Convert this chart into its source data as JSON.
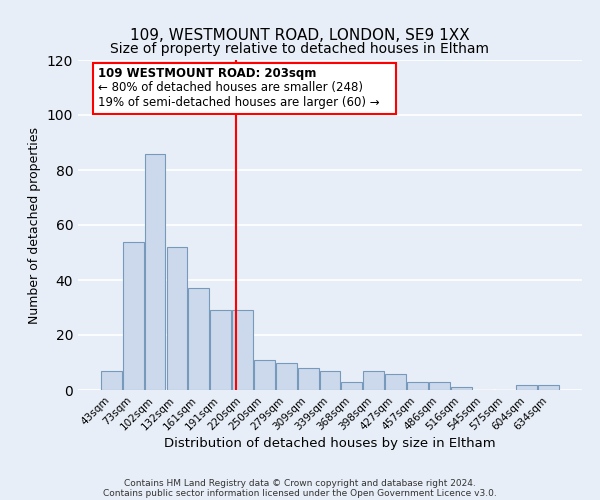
{
  "title": "109, WESTMOUNT ROAD, LONDON, SE9 1XX",
  "subtitle": "Size of property relative to detached houses in Eltham",
  "xlabel": "Distribution of detached houses by size in Eltham",
  "ylabel": "Number of detached properties",
  "bar_labels": [
    "43sqm",
    "73sqm",
    "102sqm",
    "132sqm",
    "161sqm",
    "191sqm",
    "220sqm",
    "250sqm",
    "279sqm",
    "309sqm",
    "339sqm",
    "368sqm",
    "398sqm",
    "427sqm",
    "457sqm",
    "486sqm",
    "516sqm",
    "545sqm",
    "575sqm",
    "604sqm",
    "634sqm"
  ],
  "bar_values": [
    7,
    54,
    86,
    52,
    37,
    29,
    29,
    11,
    10,
    8,
    7,
    3,
    7,
    6,
    3,
    3,
    1,
    0,
    0,
    2,
    2
  ],
  "bar_color": "#ccd9ec",
  "bar_edge_color": "#7799bb",
  "ylim": [
    0,
    120
  ],
  "yticks": [
    0,
    20,
    40,
    60,
    80,
    100,
    120
  ],
  "vline_x": 5.72,
  "vline_color": "red",
  "annotation_title": "109 WESTMOUNT ROAD: 203sqm",
  "annotation_line1": "← 80% of detached houses are smaller (248)",
  "annotation_line2": "19% of semi-detached houses are larger (60) →",
  "annotation_box_color": "#ffffff",
  "annotation_box_edge": "red",
  "footer_line1": "Contains HM Land Registry data © Crown copyright and database right 2024.",
  "footer_line2": "Contains public sector information licensed under the Open Government Licence v3.0.",
  "background_color": "#e8eef7",
  "grid_color": "#ffffff",
  "title_fontsize": 11,
  "subtitle_fontsize": 10
}
